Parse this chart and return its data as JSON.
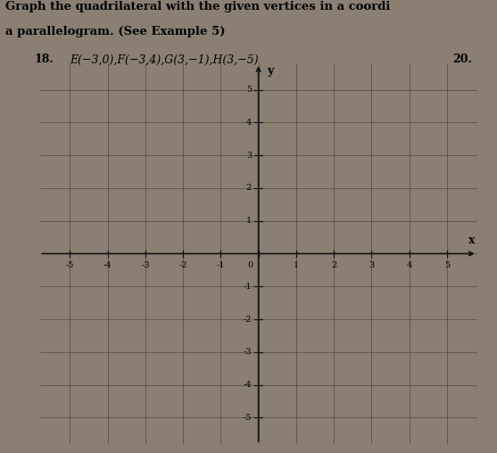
{
  "title_line1": "Graph the quadrilateral with the given vertices in a coordi",
  "title_line2": "a parallelogram. (See Example 5)",
  "problem_number": "18.",
  "problem_text": "E(−3,0),F(−3,4),G(3,−1),H(3,−5)",
  "next_number": "20.",
  "xlim": [
    -5.8,
    5.8
  ],
  "ylim": [
    -5.8,
    5.8
  ],
  "xticks": [
    -5,
    -4,
    -3,
    -2,
    -1,
    0,
    1,
    2,
    3,
    4,
    5
  ],
  "yticks": [
    -5,
    -4,
    -3,
    -2,
    -1,
    1,
    2,
    3,
    4,
    5
  ],
  "xlabel": "x",
  "ylabel": "y",
  "bg_color": "#8a7f72",
  "grid_color": "#222222",
  "axis_color": "#111111",
  "tick_fontsize": 7,
  "header_fontsize": 9.5,
  "problem_fontsize": 9
}
